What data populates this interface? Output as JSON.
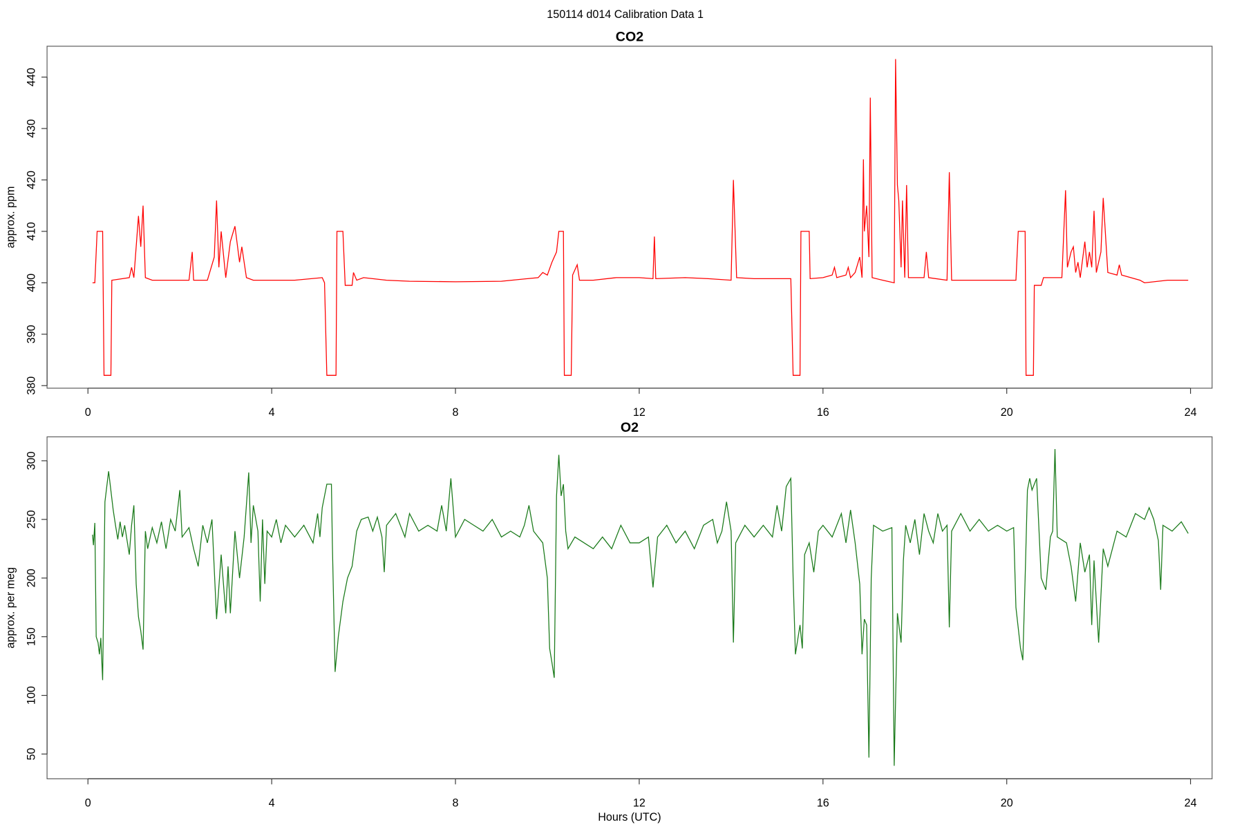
{
  "title": "150114   d014   Calibration Data 1",
  "chart_data": [
    {
      "type": "line",
      "title": "CO2",
      "ylabel": "approx. ppm",
      "xlim": [
        -0.89,
        24.47
      ],
      "ylim": [
        379.5,
        446
      ],
      "xticks": [
        0,
        4,
        8,
        12,
        16,
        20,
        24
      ],
      "yticks": [
        380,
        390,
        400,
        410,
        420,
        430,
        440
      ],
      "x": [
        0.1,
        0.15,
        0.2,
        0.32,
        0.35,
        0.5,
        0.52,
        0.9,
        0.95,
        1.0,
        1.1,
        1.15,
        1.2,
        1.25,
        1.4,
        2.2,
        2.27,
        2.3,
        2.6,
        2.75,
        2.8,
        2.85,
        2.9,
        3.0,
        3.1,
        3.2,
        3.3,
        3.35,
        3.45,
        3.6,
        4.5,
        5.1,
        5.15,
        5.2,
        5.4,
        5.42,
        5.55,
        5.6,
        5.75,
        5.78,
        5.85,
        6.0,
        6.5,
        7.0,
        8.0,
        9.0,
        9.8,
        9.9,
        10.0,
        10.1,
        10.2,
        10.25,
        10.35,
        10.37,
        10.52,
        10.55,
        10.65,
        10.7,
        11.0,
        11.5,
        12.0,
        12.3,
        12.33,
        12.36,
        13.0,
        13.5,
        14.0,
        14.05,
        14.12,
        14.5,
        15.0,
        15.3,
        15.35,
        15.5,
        15.52,
        15.7,
        15.72,
        16.0,
        16.2,
        16.25,
        16.3,
        16.5,
        16.55,
        16.6,
        16.7,
        16.8,
        16.85,
        16.88,
        16.9,
        16.95,
        17.0,
        17.03,
        17.07,
        17.3,
        17.55,
        17.58,
        17.62,
        17.65,
        17.7,
        17.73,
        17.78,
        17.82,
        17.86,
        17.95,
        18.2,
        18.25,
        18.3,
        18.7,
        18.75,
        18.8,
        19.5,
        20.0,
        20.2,
        20.25,
        20.4,
        20.42,
        20.58,
        20.6,
        20.75,
        20.8,
        21.0,
        21.2,
        21.28,
        21.32,
        21.4,
        21.45,
        21.5,
        21.55,
        21.6,
        21.7,
        21.75,
        21.8,
        21.85,
        21.9,
        21.95,
        22.05,
        22.1,
        22.2,
        22.4,
        22.45,
        22.5,
        22.7,
        22.9,
        23.0,
        23.5,
        23.95
      ],
      "series": [
        {
          "color": "#ff0000",
          "values": [
            400,
            400,
            410,
            410,
            382,
            382,
            400.5,
            401,
            403,
            401,
            413,
            407,
            415,
            401,
            400.5,
            400.5,
            406,
            400.5,
            400.5,
            405,
            416,
            403,
            410,
            401,
            408,
            411,
            404,
            407,
            401,
            400.5,
            400.5,
            401,
            400,
            382,
            382,
            410,
            410,
            399.5,
            399.5,
            402,
            400.5,
            401,
            400.5,
            400.3,
            400.2,
            400.3,
            401,
            402,
            401.5,
            404,
            406,
            410,
            410,
            382,
            382,
            401.5,
            403.5,
            400.5,
            400.5,
            401,
            401,
            400.8,
            409,
            400.8,
            401,
            400.8,
            400.5,
            420,
            401,
            400.8,
            400.8,
            400.8,
            382,
            382,
            410,
            410,
            400.8,
            401,
            401.5,
            403,
            401,
            401.5,
            403,
            401,
            402,
            405,
            401,
            424,
            410,
            415,
            405,
            436,
            401,
            400.5,
            400,
            443.5,
            419,
            416,
            403,
            416,
            401,
            419,
            401,
            401,
            401,
            406,
            401,
            400.5,
            421.5,
            400.5,
            400.5,
            400.5,
            400.5,
            410,
            410,
            382,
            382,
            399.5,
            399.5,
            401,
            401,
            401,
            418,
            403,
            406,
            407,
            402,
            404,
            401,
            408,
            403,
            406,
            403,
            414,
            402,
            406,
            416.5,
            402,
            401.5,
            403.5,
            401.5,
            401,
            400.5,
            400,
            400.5,
            400.5
          ]
        }
      ]
    },
    {
      "type": "line",
      "title": "O2",
      "ylabel": "approx. per meg",
      "xlabel": "Hours (UTC)",
      "xlim": [
        -0.89,
        24.47
      ],
      "ylim": [
        28.9,
        320.4
      ],
      "xticks": [
        0,
        4,
        8,
        12,
        16,
        20,
        24
      ],
      "yticks": [
        50,
        100,
        150,
        200,
        250,
        300
      ],
      "x": [
        0.1,
        0.12,
        0.15,
        0.18,
        0.22,
        0.25,
        0.28,
        0.32,
        0.37,
        0.45,
        0.55,
        0.6,
        0.65,
        0.7,
        0.75,
        0.8,
        0.9,
        0.95,
        1.0,
        1.05,
        1.1,
        1.15,
        1.2,
        1.25,
        1.3,
        1.4,
        1.5,
        1.6,
        1.7,
        1.8,
        1.9,
        2.0,
        2.05,
        2.2,
        2.3,
        2.4,
        2.5,
        2.6,
        2.7,
        2.8,
        2.9,
        3.0,
        3.05,
        3.1,
        3.2,
        3.3,
        3.4,
        3.5,
        3.55,
        3.6,
        3.7,
        3.75,
        3.8,
        3.85,
        3.9,
        4.0,
        4.1,
        4.2,
        4.3,
        4.5,
        4.7,
        4.9,
        5.0,
        5.05,
        5.1,
        5.2,
        5.3,
        5.32,
        5.38,
        5.45,
        5.55,
        5.65,
        5.75,
        5.85,
        5.95,
        6.1,
        6.2,
        6.3,
        6.4,
        6.45,
        6.5,
        6.7,
        6.9,
        7.0,
        7.2,
        7.4,
        7.6,
        7.7,
        7.8,
        7.9,
        8.0,
        8.2,
        8.4,
        8.6,
        8.8,
        9.0,
        9.2,
        9.4,
        9.5,
        9.6,
        9.7,
        9.9,
        10.0,
        10.05,
        10.1,
        10.15,
        10.2,
        10.25,
        10.3,
        10.35,
        10.4,
        10.45,
        10.6,
        10.8,
        11.0,
        11.2,
        11.4,
        11.6,
        11.8,
        12.0,
        12.2,
        12.3,
        12.4,
        12.6,
        12.8,
        13.0,
        13.2,
        13.4,
        13.6,
        13.7,
        13.8,
        13.9,
        14.0,
        14.05,
        14.1,
        14.3,
        14.5,
        14.7,
        14.9,
        15.0,
        15.1,
        15.2,
        15.3,
        15.35,
        15.4,
        15.5,
        15.55,
        15.6,
        15.7,
        15.8,
        15.9,
        16.0,
        16.2,
        16.4,
        16.5,
        16.6,
        16.7,
        16.8,
        16.85,
        16.9,
        16.95,
        17.0,
        17.05,
        17.1,
        17.3,
        17.5,
        17.55,
        17.62,
        17.7,
        17.75,
        17.8,
        17.9,
        18.0,
        18.1,
        18.2,
        18.3,
        18.4,
        18.5,
        18.6,
        18.7,
        18.75,
        18.8,
        19.0,
        19.2,
        19.4,
        19.6,
        19.8,
        20.0,
        20.15,
        20.2,
        20.3,
        20.35,
        20.4,
        20.45,
        20.5,
        20.55,
        20.65,
        20.75,
        20.85,
        20.95,
        21.0,
        21.05,
        21.1,
        21.3,
        21.4,
        21.5,
        21.6,
        21.7,
        21.8,
        21.85,
        21.9,
        22.0,
        22.1,
        22.2,
        22.3,
        22.4,
        22.6,
        22.8,
        23.0,
        23.1,
        23.2,
        23.3,
        23.35,
        23.4,
        23.6,
        23.8,
        23.95
      ],
      "series": [
        {
          "color": "#1a7a1a",
          "values": [
            237,
            228,
            247,
            150,
            145,
            135,
            149,
            113,
            265,
            291,
            258,
            245,
            233,
            248,
            235,
            245,
            220,
            245,
            262,
            195,
            167,
            155,
            139,
            240,
            225,
            243,
            230,
            248,
            225,
            250,
            240,
            275,
            235,
            243,
            225,
            210,
            245,
            230,
            250,
            165,
            220,
            170,
            210,
            170,
            240,
            200,
            235,
            290,
            230,
            262,
            240,
            180,
            250,
            195,
            240,
            235,
            250,
            230,
            245,
            235,
            245,
            230,
            255,
            235,
            260,
            280,
            280,
            230,
            120,
            150,
            180,
            200,
            210,
            240,
            250,
            252,
            240,
            252,
            235,
            205,
            245,
            255,
            235,
            255,
            240,
            245,
            240,
            262,
            240,
            285,
            235,
            250,
            245,
            240,
            250,
            235,
            240,
            235,
            245,
            262,
            240,
            230,
            200,
            140,
            128,
            115,
            270,
            305,
            270,
            280,
            240,
            225,
            235,
            230,
            225,
            235,
            225,
            245,
            230,
            230,
            235,
            192,
            235,
            245,
            230,
            240,
            225,
            245,
            250,
            230,
            240,
            265,
            240,
            145,
            230,
            245,
            235,
            245,
            235,
            262,
            240,
            278,
            285,
            200,
            135,
            160,
            140,
            220,
            230,
            205,
            240,
            245,
            235,
            255,
            230,
            258,
            230,
            195,
            135,
            165,
            160,
            47,
            200,
            245,
            240,
            243,
            40,
            170,
            145,
            215,
            245,
            230,
            250,
            220,
            255,
            240,
            230,
            255,
            240,
            245,
            158,
            240,
            255,
            240,
            250,
            240,
            245,
            240,
            243,
            175,
            140,
            130,
            200,
            275,
            285,
            275,
            285,
            200,
            190,
            235,
            240,
            310,
            235,
            230,
            210,
            180,
            230,
            205,
            220,
            160,
            215,
            145,
            225,
            210,
            225,
            240,
            235,
            255,
            250,
            260,
            250,
            232,
            190,
            245,
            240,
            248,
            238
          ]
        }
      ]
    }
  ]
}
